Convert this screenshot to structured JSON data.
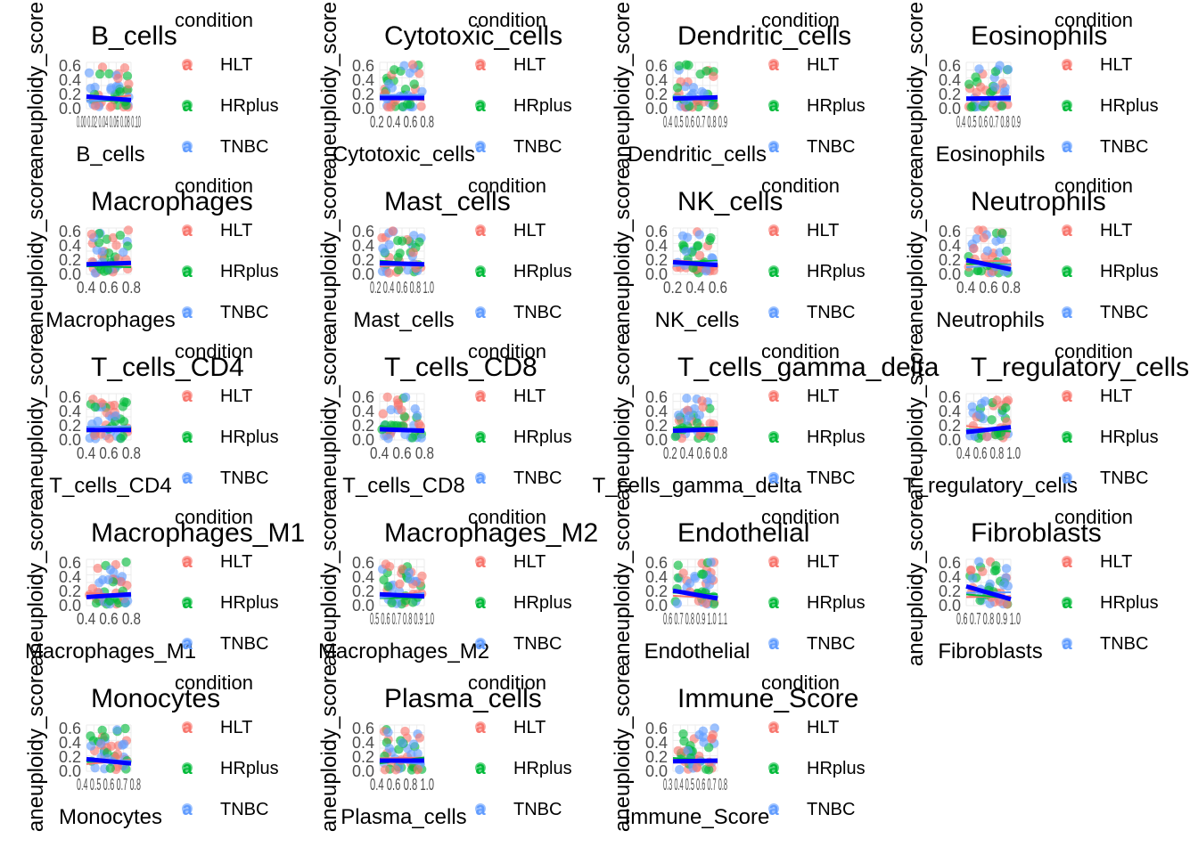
{
  "chart_data": {
    "type": "scatter",
    "title": "",
    "y_label": "aneuploidy_score",
    "y_ticks": [
      "0.0",
      "0.2",
      "0.4",
      "0.6"
    ],
    "ylim": [
      0,
      0.65
    ],
    "grid": true,
    "legend": {
      "title": "condition",
      "position": "right",
      "entries": [
        {
          "label": "HLT",
          "color": "#F8766D"
        },
        {
          "label": "HRplus",
          "color": "#00BA38"
        },
        {
          "label": "TNBC",
          "color": "#619CFF"
        }
      ]
    },
    "trend_color": "#0000FF",
    "panels": [
      {
        "name": "B_cells",
        "x_label": "B_cells",
        "x_tick_text": "0.00 0.02 0.04 0.06 0.08 0.10",
        "xlim": [
          0,
          0.1
        ],
        "trend": [
          0.17,
          0.12
        ]
      },
      {
        "name": "Cytotoxic_cells",
        "x_label": "Cytotoxic_cells",
        "x_tick_text": "0.2 0.4 0.6 0.8",
        "xlim": [
          0.2,
          0.8
        ],
        "trend": [
          0.15,
          0.15
        ]
      },
      {
        "name": "Dendritic_cells",
        "x_label": "Dendritic_cells",
        "x_tick_text": "0.4 0.5 0.6 0.7 0.8 0.9",
        "xlim": [
          0.4,
          0.9
        ],
        "trend": [
          0.14,
          0.16
        ]
      },
      {
        "name": "Eosinophils",
        "x_label": "Eosinophils",
        "x_tick_text": "0.4 0.5 0.6 0.7 0.8 0.9",
        "xlim": [
          0.4,
          0.9
        ],
        "trend": [
          0.14,
          0.15
        ]
      },
      {
        "name": "Macrophages",
        "x_label": "Macrophages",
        "x_tick_text": "0.4 0.6 0.8",
        "xlim": [
          0.4,
          0.8
        ],
        "trend": [
          0.14,
          0.16
        ]
      },
      {
        "name": "Mast_cells",
        "x_label": "Mast_cells",
        "x_tick_text": "0.2 0.4 0.6 0.8 1.0",
        "xlim": [
          0.2,
          1.0
        ],
        "trend": [
          0.16,
          0.14
        ]
      },
      {
        "name": "NK_cells",
        "x_label": "NK_cells",
        "x_tick_text": "0.2 0.4 0.6",
        "xlim": [
          0.2,
          0.6
        ],
        "trend": [
          0.17,
          0.13
        ]
      },
      {
        "name": "Neutrophils",
        "x_label": "Neutrophils",
        "x_tick_text": "0.4 0.6 0.8",
        "xlim": [
          0.4,
          0.8
        ],
        "trend": [
          0.2,
          0.07
        ]
      },
      {
        "name": "T_cells_CD4",
        "x_label": "T_cells_CD4",
        "x_tick_text": "0.4 0.6 0.8",
        "xlim": [
          0.4,
          0.8
        ],
        "trend": [
          0.14,
          0.14
        ]
      },
      {
        "name": "T_cells_CD8",
        "x_label": "T_cells_CD8",
        "x_tick_text": "0.4 0.6 0.8",
        "xlim": [
          0.4,
          0.8
        ],
        "trend": [
          0.15,
          0.13
        ]
      },
      {
        "name": "T_cells_gamma_delta",
        "x_label": "T_cells_gamma_delta",
        "x_tick_text": "0.2 0.4 0.6 0.8",
        "xlim": [
          0.2,
          0.8
        ],
        "trend": [
          0.13,
          0.15
        ]
      },
      {
        "name": "T_regulatory_cells",
        "x_label": "T_regulatory_cells",
        "x_tick_text": "0.4 0.6 0.8 1.0",
        "xlim": [
          0.4,
          1.0
        ],
        "trend": [
          0.11,
          0.18
        ]
      },
      {
        "name": "Macrophages_M1",
        "x_label": "Macrophages_M1",
        "x_tick_text": "0.4 0.6 0.8",
        "xlim": [
          0.4,
          0.8
        ],
        "trend": [
          0.12,
          0.16
        ]
      },
      {
        "name": "Macrophages_M2",
        "x_label": "Macrophages_M2",
        "x_tick_text": "0.5 0.6 0.7 0.8 0.9 1.0",
        "xlim": [
          0.5,
          1.0
        ],
        "trend": [
          0.16,
          0.13
        ]
      },
      {
        "name": "Endothelial",
        "x_label": "Endothelial",
        "x_tick_text": "0.6 0.7 0.8 0.9 1.0 1.1",
        "xlim": [
          0.6,
          1.1
        ],
        "trend": [
          0.21,
          0.1
        ]
      },
      {
        "name": "Fibroblasts",
        "x_label": "Fibroblasts",
        "x_tick_text": "0.6 0.7 0.8 0.9 1.0",
        "xlim": [
          0.6,
          1.0
        ],
        "trend": [
          0.27,
          0.09
        ]
      },
      {
        "name": "Monocytes",
        "x_label": "Monocytes",
        "x_tick_text": "0.4 0.5 0.6 0.7 0.8",
        "xlim": [
          0.4,
          0.8
        ],
        "trend": [
          0.17,
          0.11
        ]
      },
      {
        "name": "Plasma_cells",
        "x_label": "Plasma_cells",
        "x_tick_text": "0.4 0.6 0.8 1.0",
        "xlim": [
          0.4,
          1.0
        ],
        "trend": [
          0.15,
          0.15
        ]
      },
      {
        "name": "Immune_Score",
        "x_label": "Immune_Score",
        "x_tick_text": "0.3 0.4 0.5 0.6 0.7 0.8",
        "xlim": [
          0.3,
          0.8
        ],
        "trend": [
          0.14,
          0.15
        ]
      }
    ]
  }
}
